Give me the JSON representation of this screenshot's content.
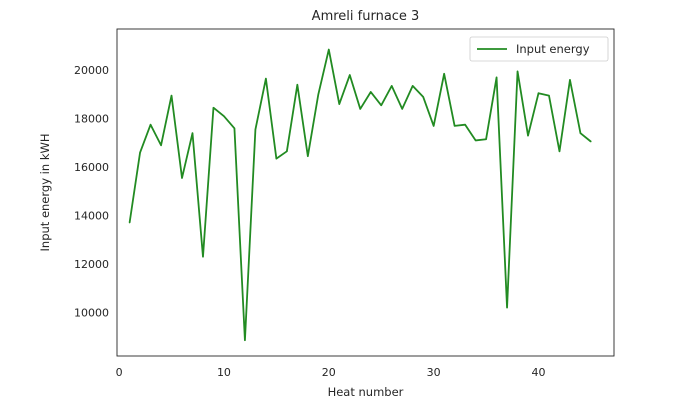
{
  "chart_data": {
    "type": "line",
    "title": "Amreli furnace 3",
    "xlabel": "Heat number",
    "ylabel": "Input energy in kWH",
    "xlim": [
      -0.2,
      47.2
    ],
    "ylim": [
      8200,
      21700
    ],
    "xticks": [
      0,
      10,
      20,
      30,
      40
    ],
    "yticks": [
      10000,
      12000,
      14000,
      16000,
      18000,
      20000
    ],
    "grid": false,
    "legend_position": "top-right",
    "series": [
      {
        "name": "Input energy",
        "color": "#228b22",
        "x": [
          1,
          2,
          3,
          4,
          5,
          6,
          7,
          8,
          9,
          10,
          11,
          12,
          13,
          14,
          15,
          16,
          17,
          18,
          19,
          20,
          21,
          22,
          23,
          24,
          25,
          26,
          27,
          28,
          29,
          30,
          31,
          32,
          33,
          34,
          35,
          36,
          37,
          38,
          39,
          40,
          41,
          42,
          43,
          44,
          45
        ],
        "y": [
          13700,
          16600,
          17750,
          16900,
          18950,
          15550,
          17400,
          12300,
          18450,
          18100,
          17600,
          8850,
          17550,
          19650,
          16350,
          16650,
          19400,
          16450,
          19000,
          20850,
          18600,
          19800,
          18400,
          19100,
          18550,
          19350,
          18400,
          19350,
          18900,
          17700,
          19850,
          17700,
          17750,
          17100,
          17150,
          19700,
          10200,
          19950,
          17300,
          19050,
          18950,
          16650,
          19600,
          17400,
          17050
        ]
      }
    ]
  }
}
